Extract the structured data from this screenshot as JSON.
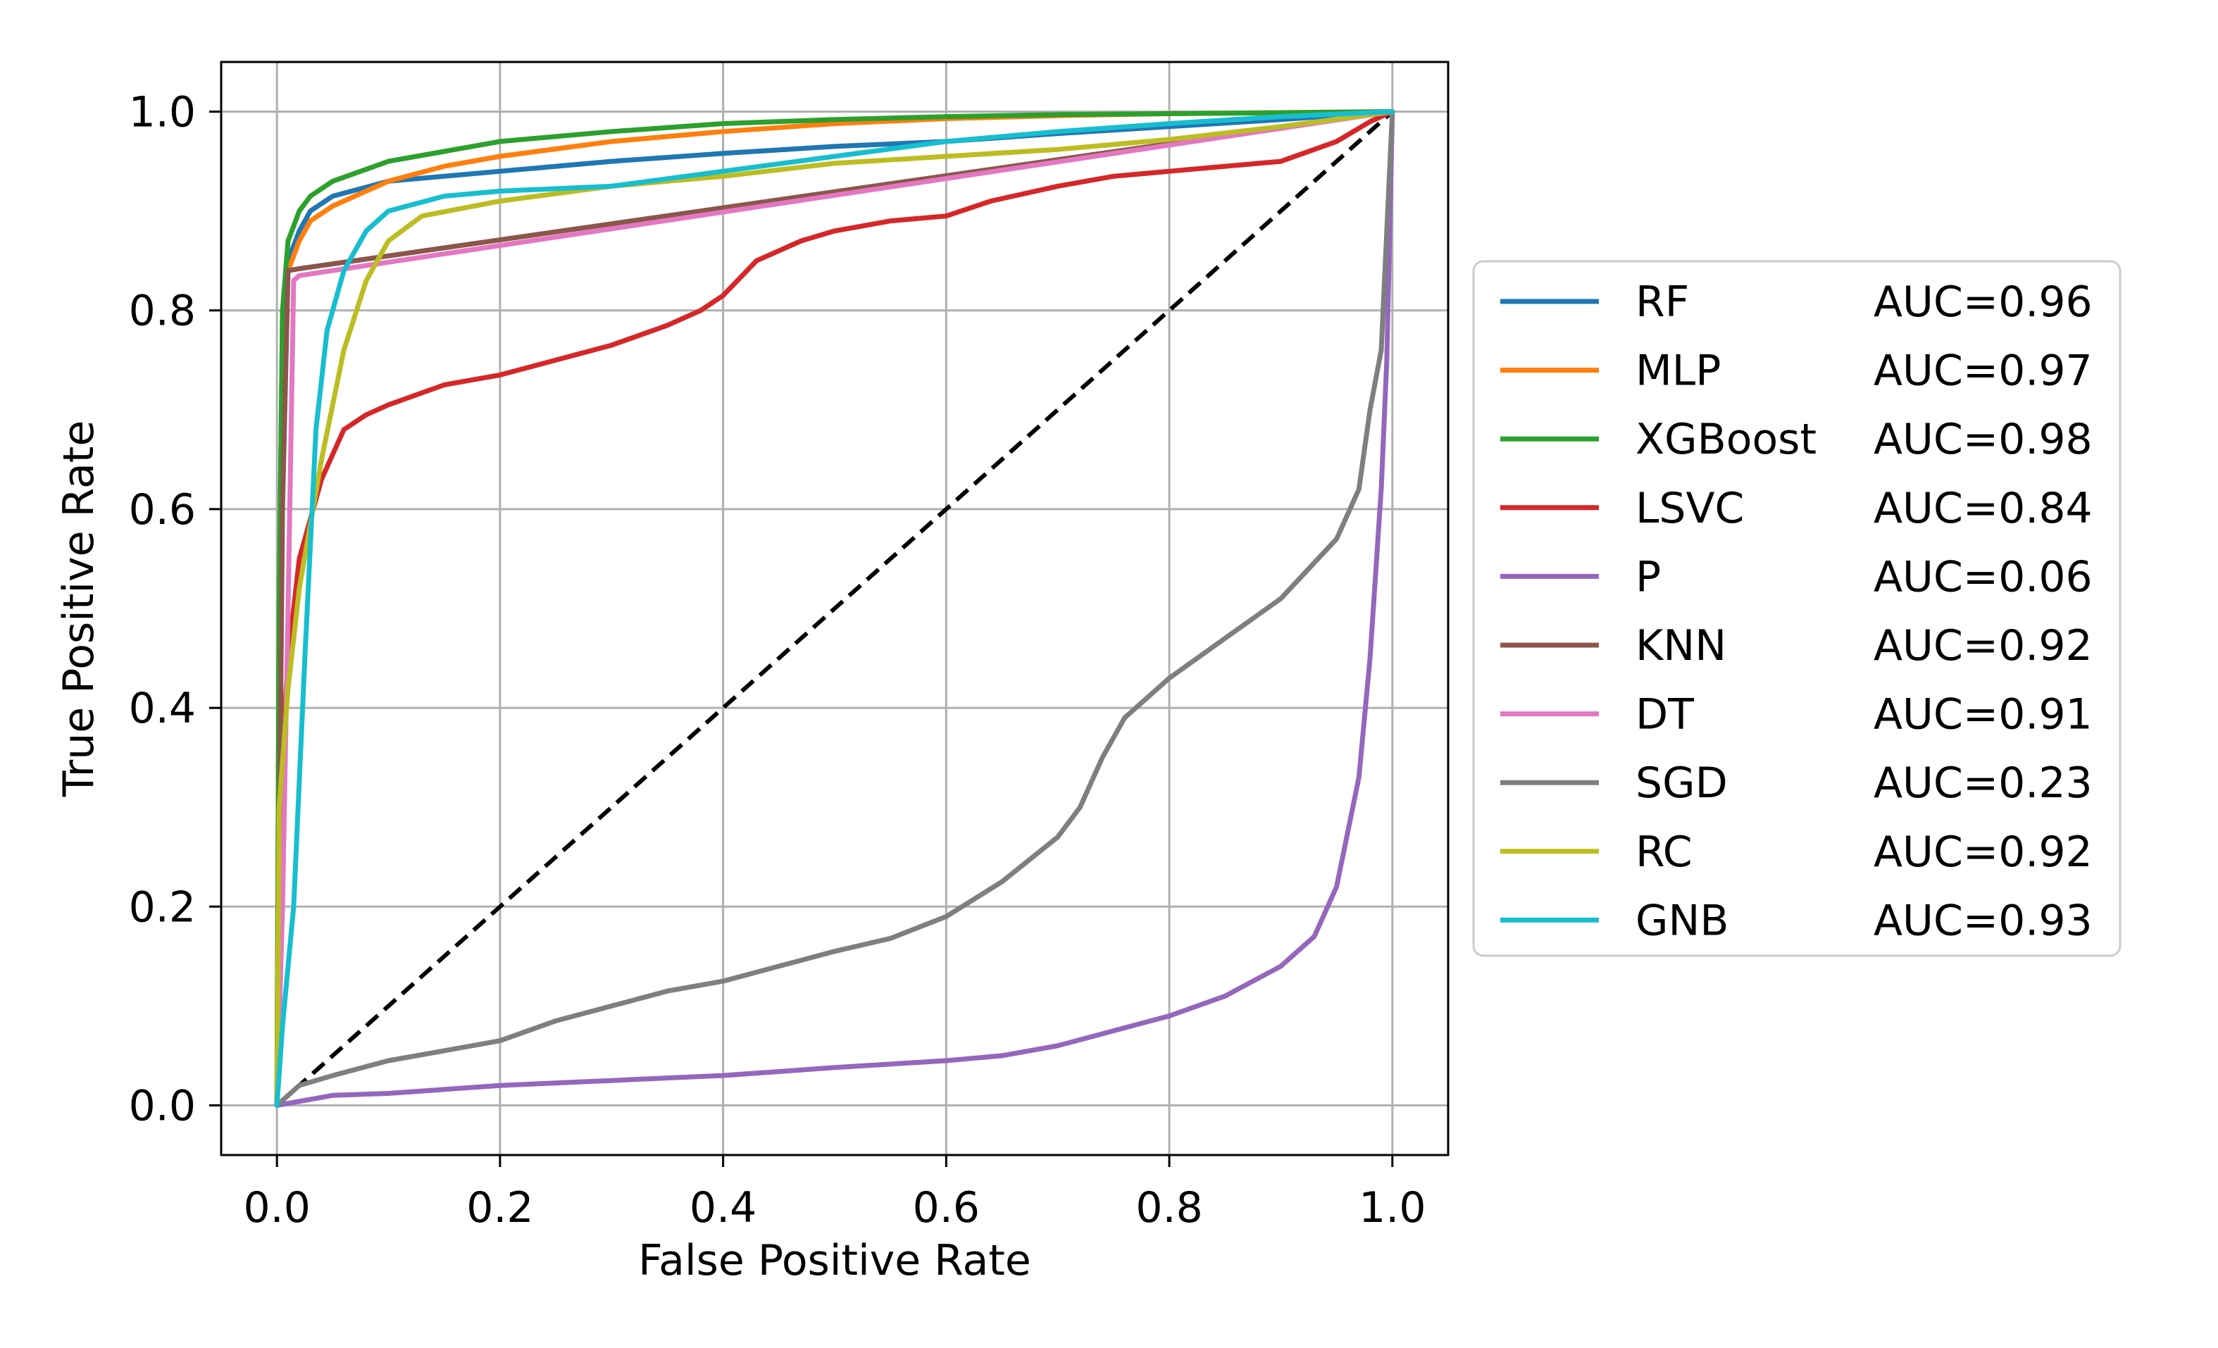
{
  "chart_data": {
    "type": "line",
    "title": "",
    "xlabel": "False Positive Rate",
    "ylabel": "True Positive Rate",
    "xlim": [
      -0.05,
      1.05
    ],
    "ylim": [
      -0.05,
      1.05
    ],
    "xticks": [
      0.0,
      0.2,
      0.4,
      0.6,
      0.8,
      1.0
    ],
    "yticks": [
      0.0,
      0.2,
      0.4,
      0.6,
      0.8,
      1.0
    ],
    "xtick_labels": [
      "0.0",
      "0.2",
      "0.4",
      "0.6",
      "0.8",
      "1.0"
    ],
    "ytick_labels": [
      "0.0",
      "0.2",
      "0.4",
      "0.6",
      "0.8",
      "1.0"
    ],
    "grid": true,
    "legend_position": "right-outside",
    "reference_line": {
      "name": "chance",
      "color": "#000000",
      "style": "dashed",
      "points": [
        [
          0,
          0
        ],
        [
          1,
          1
        ]
      ]
    },
    "series": [
      {
        "name": "RF",
        "auc_label": "AUC=0.96",
        "color": "#1f77b4",
        "points": [
          [
            0,
            0
          ],
          [
            0.002,
            0.5
          ],
          [
            0.005,
            0.8
          ],
          [
            0.01,
            0.85
          ],
          [
            0.02,
            0.88
          ],
          [
            0.03,
            0.9
          ],
          [
            0.05,
            0.915
          ],
          [
            0.1,
            0.93
          ],
          [
            0.2,
            0.94
          ],
          [
            0.3,
            0.95
          ],
          [
            0.4,
            0.958
          ],
          [
            0.5,
            0.965
          ],
          [
            0.6,
            0.97
          ],
          [
            0.7,
            0.978
          ],
          [
            0.8,
            0.985
          ],
          [
            0.9,
            0.992
          ],
          [
            1,
            1
          ]
        ]
      },
      {
        "name": "MLP",
        "auc_label": "AUC=0.97",
        "color": "#ff7f0e",
        "points": [
          [
            0,
            0
          ],
          [
            0.002,
            0.5
          ],
          [
            0.005,
            0.78
          ],
          [
            0.01,
            0.84
          ],
          [
            0.02,
            0.87
          ],
          [
            0.03,
            0.89
          ],
          [
            0.05,
            0.905
          ],
          [
            0.1,
            0.93
          ],
          [
            0.15,
            0.945
          ],
          [
            0.2,
            0.955
          ],
          [
            0.3,
            0.97
          ],
          [
            0.4,
            0.98
          ],
          [
            0.5,
            0.988
          ],
          [
            0.6,
            0.993
          ],
          [
            0.7,
            0.996
          ],
          [
            0.8,
            0.998
          ],
          [
            0.9,
            0.999
          ],
          [
            1,
            1
          ]
        ]
      },
      {
        "name": "XGBoost",
        "auc_label": "AUC=0.98",
        "color": "#2ca02c",
        "points": [
          [
            0,
            0
          ],
          [
            0.002,
            0.5
          ],
          [
            0.005,
            0.8
          ],
          [
            0.01,
            0.87
          ],
          [
            0.02,
            0.9
          ],
          [
            0.03,
            0.915
          ],
          [
            0.05,
            0.93
          ],
          [
            0.1,
            0.95
          ],
          [
            0.15,
            0.96
          ],
          [
            0.2,
            0.97
          ],
          [
            0.3,
            0.98
          ],
          [
            0.4,
            0.988
          ],
          [
            0.5,
            0.992
          ],
          [
            0.6,
            0.995
          ],
          [
            0.7,
            0.997
          ],
          [
            0.8,
            0.998
          ],
          [
            0.9,
            0.999
          ],
          [
            1,
            1
          ]
        ]
      },
      {
        "name": "LSVC",
        "auc_label": "AUC=0.84",
        "color": "#d62728",
        "points": [
          [
            0,
            0
          ],
          [
            0.002,
            0.3
          ],
          [
            0.01,
            0.45
          ],
          [
            0.02,
            0.55
          ],
          [
            0.04,
            0.63
          ],
          [
            0.06,
            0.68
          ],
          [
            0.08,
            0.695
          ],
          [
            0.1,
            0.705
          ],
          [
            0.15,
            0.725
          ],
          [
            0.2,
            0.735
          ],
          [
            0.25,
            0.75
          ],
          [
            0.3,
            0.765
          ],
          [
            0.35,
            0.785
          ],
          [
            0.38,
            0.8
          ],
          [
            0.4,
            0.815
          ],
          [
            0.43,
            0.85
          ],
          [
            0.47,
            0.87
          ],
          [
            0.5,
            0.88
          ],
          [
            0.55,
            0.89
          ],
          [
            0.6,
            0.895
          ],
          [
            0.64,
            0.91
          ],
          [
            0.7,
            0.925
          ],
          [
            0.75,
            0.935
          ],
          [
            0.8,
            0.94
          ],
          [
            0.85,
            0.945
          ],
          [
            0.9,
            0.95
          ],
          [
            0.95,
            0.97
          ],
          [
            0.98,
            0.99
          ],
          [
            1,
            1
          ]
        ]
      },
      {
        "name": "P",
        "auc_label": "AUC=0.06",
        "color": "#9467bd",
        "points": [
          [
            0,
            0
          ],
          [
            0.05,
            0.01
          ],
          [
            0.1,
            0.012
          ],
          [
            0.2,
            0.02
          ],
          [
            0.3,
            0.025
          ],
          [
            0.4,
            0.03
          ],
          [
            0.5,
            0.038
          ],
          [
            0.6,
            0.045
          ],
          [
            0.65,
            0.05
          ],
          [
            0.7,
            0.06
          ],
          [
            0.75,
            0.075
          ],
          [
            0.8,
            0.09
          ],
          [
            0.85,
            0.11
          ],
          [
            0.9,
            0.14
          ],
          [
            0.93,
            0.17
          ],
          [
            0.95,
            0.22
          ],
          [
            0.97,
            0.33
          ],
          [
            0.98,
            0.45
          ],
          [
            0.99,
            0.62
          ],
          [
            0.995,
            0.75
          ],
          [
            1,
            1
          ]
        ]
      },
      {
        "name": "KNN",
        "auc_label": "AUC=0.92",
        "color": "#8c564b",
        "points": [
          [
            0,
            0
          ],
          [
            0.005,
            0.6
          ],
          [
            0.01,
            0.84
          ],
          [
            0.02,
            0.842
          ],
          [
            1,
            1
          ]
        ]
      },
      {
        "name": "DT",
        "auc_label": "AUC=0.91",
        "color": "#e377c2",
        "points": [
          [
            0,
            0
          ],
          [
            0.005,
            0.2
          ],
          [
            0.01,
            0.5
          ],
          [
            0.015,
            0.83
          ],
          [
            0.02,
            0.835
          ],
          [
            1,
            1
          ]
        ]
      },
      {
        "name": "SGD",
        "auc_label": "AUC=0.23",
        "color": "#7f7f7f",
        "points": [
          [
            0,
            0
          ],
          [
            0.02,
            0.02
          ],
          [
            0.05,
            0.03
          ],
          [
            0.1,
            0.045
          ],
          [
            0.15,
            0.055
          ],
          [
            0.2,
            0.065
          ],
          [
            0.25,
            0.085
          ],
          [
            0.3,
            0.1
          ],
          [
            0.35,
            0.115
          ],
          [
            0.4,
            0.125
          ],
          [
            0.45,
            0.14
          ],
          [
            0.5,
            0.155
          ],
          [
            0.55,
            0.168
          ],
          [
            0.6,
            0.19
          ],
          [
            0.65,
            0.225
          ],
          [
            0.7,
            0.27
          ],
          [
            0.72,
            0.3
          ],
          [
            0.74,
            0.35
          ],
          [
            0.76,
            0.39
          ],
          [
            0.8,
            0.43
          ],
          [
            0.85,
            0.47
          ],
          [
            0.9,
            0.51
          ],
          [
            0.95,
            0.57
          ],
          [
            0.97,
            0.62
          ],
          [
            0.98,
            0.7
          ],
          [
            0.99,
            0.76
          ],
          [
            1,
            1
          ]
        ]
      },
      {
        "name": "RC",
        "auc_label": "AUC=0.92",
        "color": "#bcbd22",
        "points": [
          [
            0,
            0
          ],
          [
            0.002,
            0.3
          ],
          [
            0.01,
            0.42
          ],
          [
            0.02,
            0.52
          ],
          [
            0.04,
            0.65
          ],
          [
            0.06,
            0.76
          ],
          [
            0.08,
            0.83
          ],
          [
            0.1,
            0.87
          ],
          [
            0.13,
            0.895
          ],
          [
            0.2,
            0.91
          ],
          [
            0.3,
            0.925
          ],
          [
            0.4,
            0.935
          ],
          [
            0.5,
            0.948
          ],
          [
            0.6,
            0.955
          ],
          [
            0.7,
            0.962
          ],
          [
            0.8,
            0.972
          ],
          [
            0.9,
            0.985
          ],
          [
            1,
            1
          ]
        ]
      },
      {
        "name": "GNB",
        "auc_label": "AUC=0.93",
        "color": "#17becf",
        "points": [
          [
            0,
            0
          ],
          [
            0.005,
            0.08
          ],
          [
            0.015,
            0.2
          ],
          [
            0.025,
            0.45
          ],
          [
            0.035,
            0.68
          ],
          [
            0.045,
            0.78
          ],
          [
            0.06,
            0.84
          ],
          [
            0.08,
            0.88
          ],
          [
            0.1,
            0.9
          ],
          [
            0.15,
            0.915
          ],
          [
            0.2,
            0.92
          ],
          [
            0.3,
            0.925
          ],
          [
            0.4,
            0.94
          ],
          [
            0.5,
            0.955
          ],
          [
            0.6,
            0.97
          ],
          [
            0.7,
            0.98
          ],
          [
            0.8,
            0.988
          ],
          [
            0.9,
            0.995
          ],
          [
            1,
            1
          ]
        ]
      }
    ]
  }
}
